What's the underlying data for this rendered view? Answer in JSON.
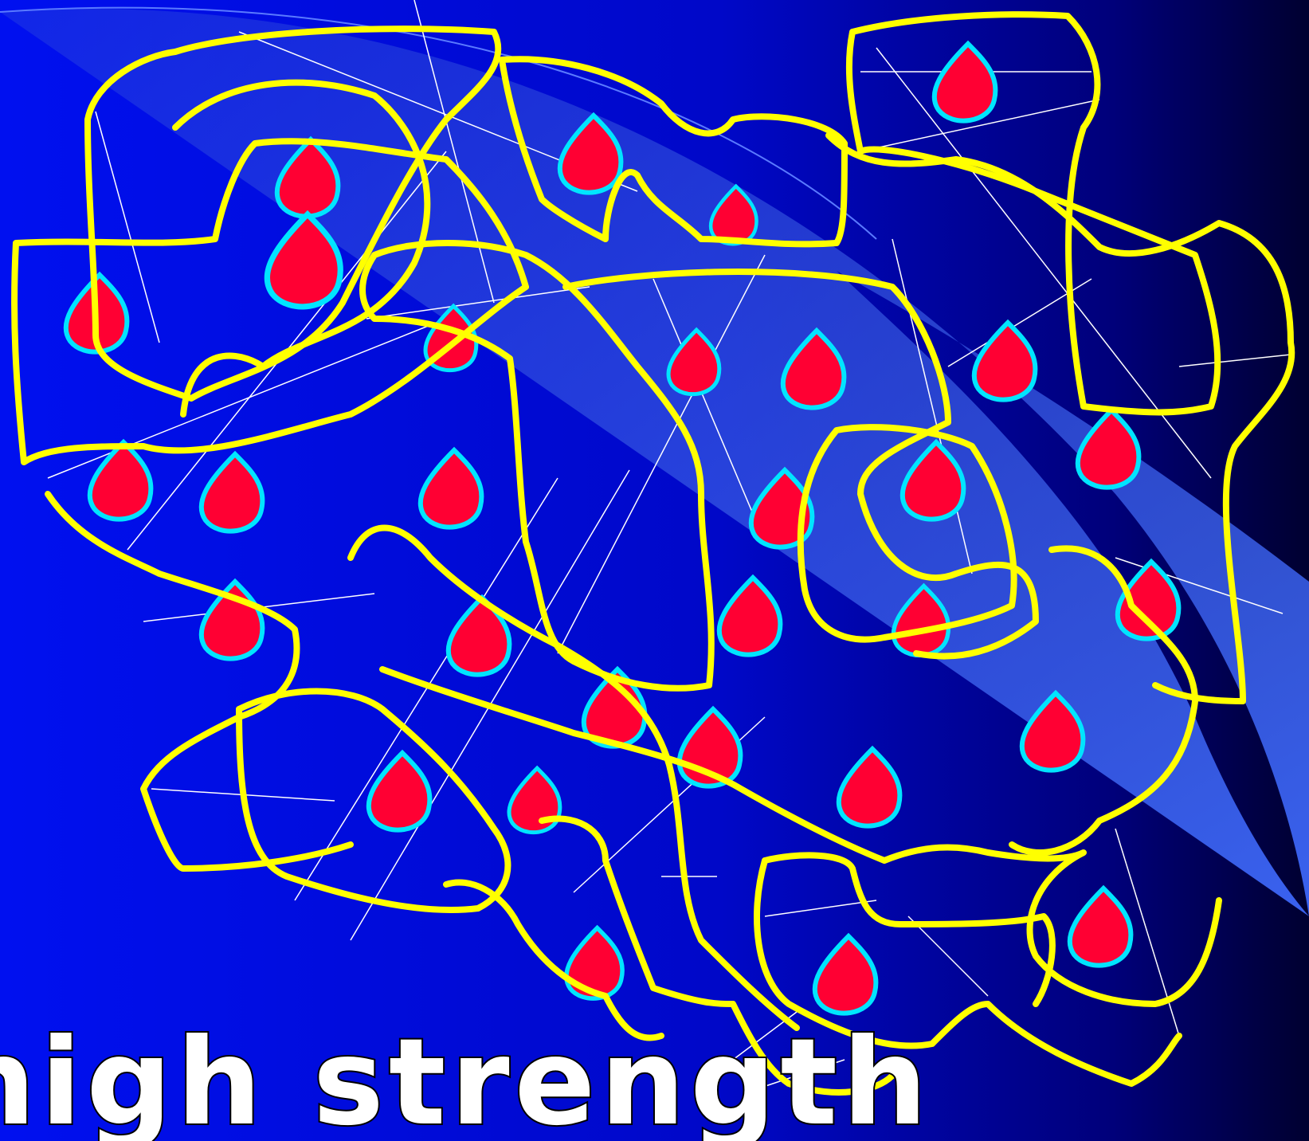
{
  "slide": {
    "caption": "high strength"
  }
}
